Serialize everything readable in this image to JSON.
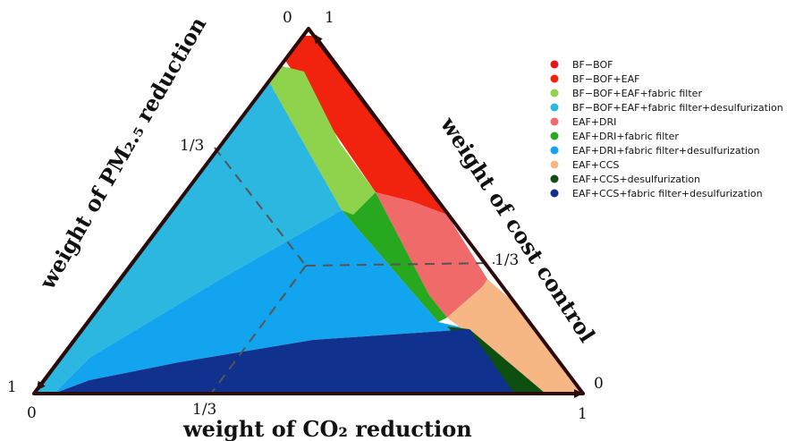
{
  "chart_data": {
    "type": "ternary",
    "axes": {
      "bottom": {
        "label": "weight of CO₂ reduction"
      },
      "left": {
        "label": "weight of PM₂.₅ reduction"
      },
      "right": {
        "label": "weight of cost control"
      }
    },
    "tick_labels": {
      "top_left": "0",
      "top_right": "1",
      "left_third": "1/3",
      "right_third": "1/3",
      "bottom_third": "1/3",
      "bottom_left_corner_upper": "1",
      "bottom_left_corner_lower": "0",
      "bottom_right_corner_upper": "0",
      "bottom_right_corner_lower": "1"
    },
    "legend_position": "top-right",
    "legend": [
      {
        "label": "BF−BOF",
        "color": "#e8141c"
      },
      {
        "label": "BF−BOF+EAF",
        "color": "#f2230e"
      },
      {
        "label": "BF−BOF+EAF+fabric filter",
        "color": "#8ed34b"
      },
      {
        "label": "BF−BOF+EAF+fabric filter+desulfurization",
        "color": "#2bb7df"
      },
      {
        "label": "EAF+DRI",
        "color": "#f06a6a"
      },
      {
        "label": "EAF+DRI+fabric filter",
        "color": "#27a81f"
      },
      {
        "label": "EAF+DRI+fabric filter+desulfurization",
        "color": "#12a4ee"
      },
      {
        "label": "EAF+CCS",
        "color": "#f7b785"
      },
      {
        "label": "EAF+CCS+desulfurization",
        "color": "#0d4f10"
      },
      {
        "label": "EAF+CCS+fabric filter+desulfurization",
        "color": "#11318e"
      }
    ]
  }
}
